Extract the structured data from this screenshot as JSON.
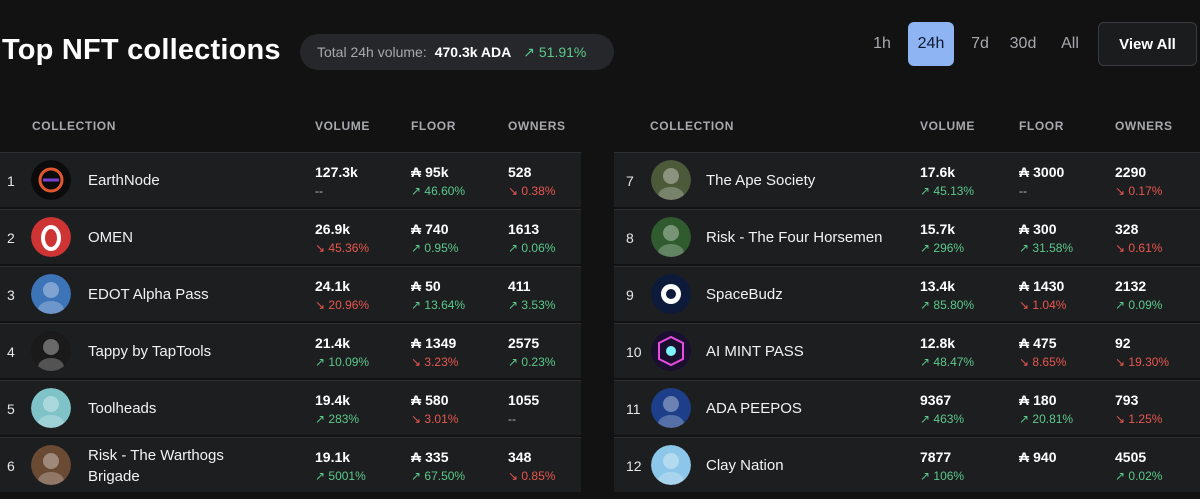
{
  "header": {
    "title": "Top NFT collections",
    "volume_label": "Total 24h volume:",
    "volume_value": "470.3k ADA",
    "volume_change": "↗ 51.91%"
  },
  "timeframes": [
    {
      "label": "1h",
      "active": false
    },
    {
      "label": "24h",
      "active": true
    },
    {
      "label": "7d",
      "active": false
    },
    {
      "label": "30d",
      "active": false
    },
    {
      "label": "All",
      "active": false
    }
  ],
  "view_all_label": "View All",
  "columns": {
    "collection": "COLLECTION",
    "volume": "VOLUME",
    "floor": "FLOOR",
    "owners": "OWNERS"
  },
  "currency_symbol": "₳",
  "left_rows": [
    {
      "rank": "1",
      "name": "EarthNode",
      "volume": "127.3k",
      "volume_change": "--",
      "volume_dir": "flat",
      "floor": "95k",
      "floor_change": "↗ 46.60%",
      "floor_dir": "up",
      "owners": "528",
      "owners_change": "↘ 0.38%",
      "owners_dir": "down",
      "avatar_icon": "earthnode-logo-icon",
      "avatar_color": "#0c0c0c"
    },
    {
      "rank": "2",
      "name": "OMEN",
      "volume": "26.9k",
      "volume_change": "↘ 45.36%",
      "volume_dir": "down",
      "floor": "740",
      "floor_change": "↗ 0.95%",
      "floor_dir": "up",
      "owners": "1613",
      "owners_change": "↗ 0.06%",
      "owners_dir": "up",
      "avatar_icon": "omen-logo-icon",
      "avatar_color": "#cf3434"
    },
    {
      "rank": "3",
      "name": "EDOT Alpha Pass",
      "volume": "24.1k",
      "volume_change": "↘ 20.96%",
      "volume_dir": "down",
      "floor": "50",
      "floor_change": "↗ 13.64%",
      "floor_dir": "up",
      "owners": "411",
      "owners_change": "↗ 3.53%",
      "owners_dir": "up",
      "avatar_icon": "edot-avatar-icon",
      "avatar_color": "#3d74b8"
    },
    {
      "rank": "4",
      "name": "Tappy by TapTools",
      "volume": "21.4k",
      "volume_change": "↗ 10.09%",
      "volume_dir": "up",
      "floor": "1349",
      "floor_change": "↘ 3.23%",
      "floor_dir": "down",
      "owners": "2575",
      "owners_change": "↗ 0.23%",
      "owners_dir": "up",
      "avatar_icon": "tappy-avatar-icon",
      "avatar_color": "#1a1a1a"
    },
    {
      "rank": "5",
      "name": "Toolheads",
      "volume": "19.4k",
      "volume_change": "↗ 283%",
      "volume_dir": "up",
      "floor": "580",
      "floor_change": "↘ 3.01%",
      "floor_dir": "down",
      "owners": "1055",
      "owners_change": "--",
      "owners_dir": "flat",
      "avatar_icon": "toolheads-avatar-icon",
      "avatar_color": "#7fc3c9"
    },
    {
      "rank": "6",
      "name": "Risk - The Warthogs Brigade",
      "volume": "19.1k",
      "volume_change": "↗ 5001%",
      "volume_dir": "up",
      "floor": "335",
      "floor_change": "↗ 67.50%",
      "floor_dir": "up",
      "owners": "348",
      "owners_change": "↘ 0.85%",
      "owners_dir": "down",
      "avatar_icon": "warthog-avatar-icon",
      "avatar_color": "#6b4a33"
    }
  ],
  "right_rows": [
    {
      "rank": "7",
      "name": "The Ape Society",
      "volume": "17.6k",
      "volume_change": "↗ 45.13%",
      "volume_dir": "up",
      "floor": "3000",
      "floor_change": "--",
      "floor_dir": "flat",
      "owners": "2290",
      "owners_change": "↘ 0.17%",
      "owners_dir": "down",
      "avatar_icon": "ape-avatar-icon",
      "avatar_color": "#4d5a3a"
    },
    {
      "rank": "8",
      "name": "Risk - The Four Horsemen",
      "volume": "15.7k",
      "volume_change": "↗ 296%",
      "volume_dir": "up",
      "floor": "300",
      "floor_change": "↗ 31.58%",
      "floor_dir": "up",
      "owners": "328",
      "owners_change": "↘ 0.61%",
      "owners_dir": "down",
      "avatar_icon": "horsemen-avatar-icon",
      "avatar_color": "#2f5b2f"
    },
    {
      "rank": "9",
      "name": "SpaceBudz",
      "volume": "13.4k",
      "volume_change": "↗ 85.80%",
      "volume_dir": "up",
      "floor": "1430",
      "floor_change": "↘ 1.04%",
      "floor_dir": "down",
      "owners": "2132",
      "owners_change": "↗ 0.09%",
      "owners_dir": "up",
      "avatar_icon": "spacebudz-logo-icon",
      "avatar_color": "#0d1a3a"
    },
    {
      "rank": "10",
      "name": "AI MINT PASS",
      "volume": "12.8k",
      "volume_change": "↗ 48.47%",
      "volume_dir": "up",
      "floor": "475",
      "floor_change": "↘ 8.65%",
      "floor_dir": "down",
      "owners": "92",
      "owners_change": "↘ 19.30%",
      "owners_dir": "down",
      "avatar_icon": "ai-mint-pass-icon",
      "avatar_color": "#1a0f2e"
    },
    {
      "rank": "11",
      "name": "ADA PEEPOS",
      "volume": "9367",
      "volume_change": "↗ 463%",
      "volume_dir": "up",
      "floor": "180",
      "floor_change": "↗ 20.81%",
      "floor_dir": "up",
      "owners": "793",
      "owners_change": "↘ 1.25%",
      "owners_dir": "down",
      "avatar_icon": "peepo-avatar-icon",
      "avatar_color": "#1d3f8a"
    },
    {
      "rank": "12",
      "name": "Clay Nation",
      "volume": "7877",
      "volume_change": "↗ 106%",
      "volume_dir": "up",
      "floor": "940",
      "floor_change": "",
      "floor_dir": "flat",
      "owners": "4505",
      "owners_change": "↗ 0.02%",
      "owners_dir": "up",
      "avatar_icon": "clay-avatar-icon",
      "avatar_color": "#8cc6e8"
    }
  ]
}
